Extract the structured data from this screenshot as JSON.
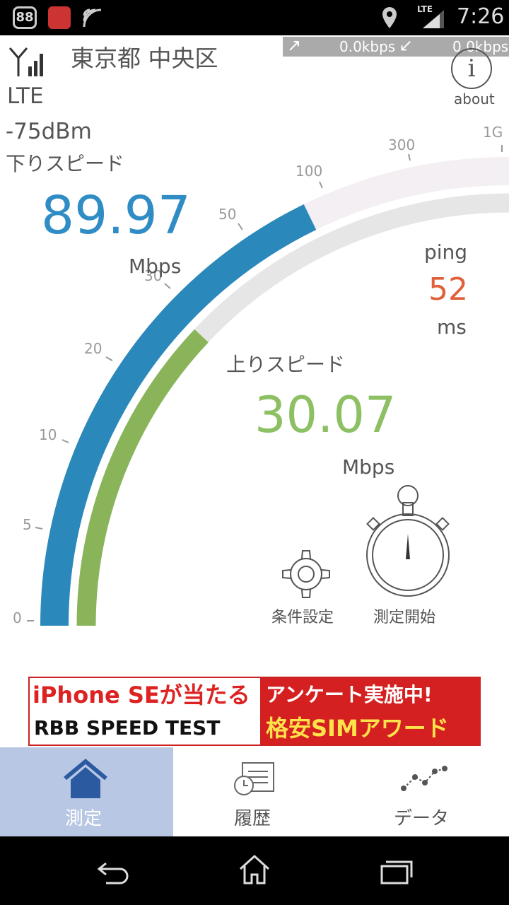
{
  "status_bar": {
    "app_badge": "88",
    "network": "LTE",
    "time": "7:26"
  },
  "header": {
    "location": "東京都 中央区",
    "upload_rate": "0.0kbps",
    "download_rate": "0.0kbps",
    "about": "about"
  },
  "signal": {
    "network": "LTE",
    "strength": "-75dBm"
  },
  "download": {
    "label": "下りスピード",
    "value": "89.97",
    "unit": "Mbps"
  },
  "ping": {
    "label": "ping",
    "value": "52",
    "unit": "ms"
  },
  "upload": {
    "label": "上りスピード",
    "value": "30.07",
    "unit": "Mbps"
  },
  "gauge": {
    "ticks": [
      "0",
      "5",
      "10",
      "20",
      "30",
      "50",
      "100",
      "300",
      "1G"
    ]
  },
  "buttons": {
    "settings": "条件設定",
    "start": "測定開始"
  },
  "ad": {
    "line1_left": "iPhone SEが当たる",
    "line1_right": "アンケート実施中!",
    "line2_left": "RBB SPEED TEST",
    "line2_right": "格安SIMアワード"
  },
  "nav": [
    "測定",
    "履歴",
    "データ"
  ]
}
